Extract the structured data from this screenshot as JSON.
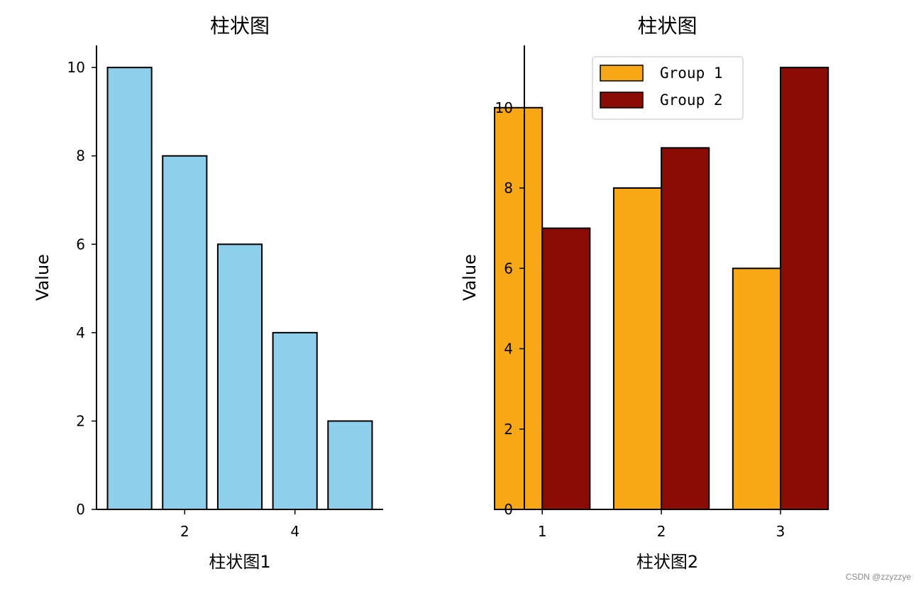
{
  "chart_data": [
    {
      "type": "bar",
      "title": "柱状图",
      "xlabel": "柱状图1",
      "ylabel": "Value",
      "x": [
        1,
        2,
        3,
        4,
        5
      ],
      "values": [
        10,
        8,
        6,
        4,
        2
      ],
      "xticks": [
        "2",
        "4"
      ],
      "yticks": [
        "0",
        "2",
        "4",
        "6",
        "8",
        "10"
      ],
      "xlim": [
        0.4,
        5.6
      ],
      "ylim": [
        0,
        10.5
      ],
      "bar_color": "#8ecfeb",
      "edge_color": "#000000",
      "grid": false,
      "legend": false
    },
    {
      "type": "bar",
      "title": "柱状图",
      "xlabel": "柱状图2",
      "ylabel": "Value",
      "categories": [
        "1",
        "2",
        "3"
      ],
      "series": [
        {
          "name": "Group 1",
          "values": [
            10,
            8,
            6
          ],
          "color": "#f9a815"
        },
        {
          "name": "Group 2",
          "values": [
            7,
            9,
            11
          ],
          "color": "#8b0c05"
        }
      ],
      "yticks": [
        "0",
        "2",
        "4",
        "6",
        "8",
        "10"
      ],
      "ylim": [
        0,
        11.55
      ],
      "edge_color": "#000000",
      "grid": false,
      "legend_position": "top-right"
    }
  ],
  "watermark": "CSDN @zzyzzye"
}
